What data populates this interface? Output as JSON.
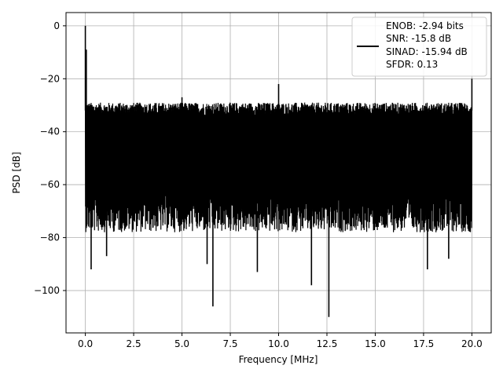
{
  "chart_data": {
    "type": "line",
    "title": "",
    "xlabel": "Frequency [MHz]",
    "ylabel": "PSD [dB]",
    "xlim": [
      -1.0,
      21.0
    ],
    "ylim": [
      -116,
      5
    ],
    "x_ticks": [
      0.0,
      2.5,
      5.0,
      7.5,
      10.0,
      12.5,
      15.0,
      17.5,
      20.0
    ],
    "x_tick_labels": [
      "0.0",
      "2.5",
      "5.0",
      "7.5",
      "10.0",
      "12.5",
      "15.0",
      "17.5",
      "20.0"
    ],
    "y_ticks": [
      0,
      -20,
      -40,
      -60,
      -80,
      -100
    ],
    "y_tick_labels": [
      "0",
      "−20",
      "−40",
      "−60",
      "−80",
      "−100"
    ],
    "grid": true,
    "legend_placement": "top-right",
    "series_color": "#000000",
    "legend_lines": [
      "ENOB: -2.94 bits",
      "SNR: -15.8 dB",
      "SINAD: -15.94 dB",
      "SFDR: 0.13"
    ],
    "series": [
      {
        "x_start": 0.0,
        "x_end": 20.0,
        "noise_floor_top_db": -32,
        "noise_floor_bottom_db": -70,
        "spurs": [
          {
            "x": 0.0,
            "y": 0.0
          },
          {
            "x": 0.05,
            "y": -9
          },
          {
            "x": 5.0,
            "y": -27
          },
          {
            "x": 10.0,
            "y": -22
          },
          {
            "x": 20.0,
            "y": -20
          }
        ],
        "dips": [
          {
            "x": 0.3,
            "y": -92
          },
          {
            "x": 1.1,
            "y": -87
          },
          {
            "x": 6.3,
            "y": -90
          },
          {
            "x": 6.6,
            "y": -106
          },
          {
            "x": 8.9,
            "y": -93
          },
          {
            "x": 11.7,
            "y": -98
          },
          {
            "x": 12.6,
            "y": -110
          },
          {
            "x": 17.7,
            "y": -92
          },
          {
            "x": 18.8,
            "y": -88
          }
        ]
      }
    ]
  }
}
